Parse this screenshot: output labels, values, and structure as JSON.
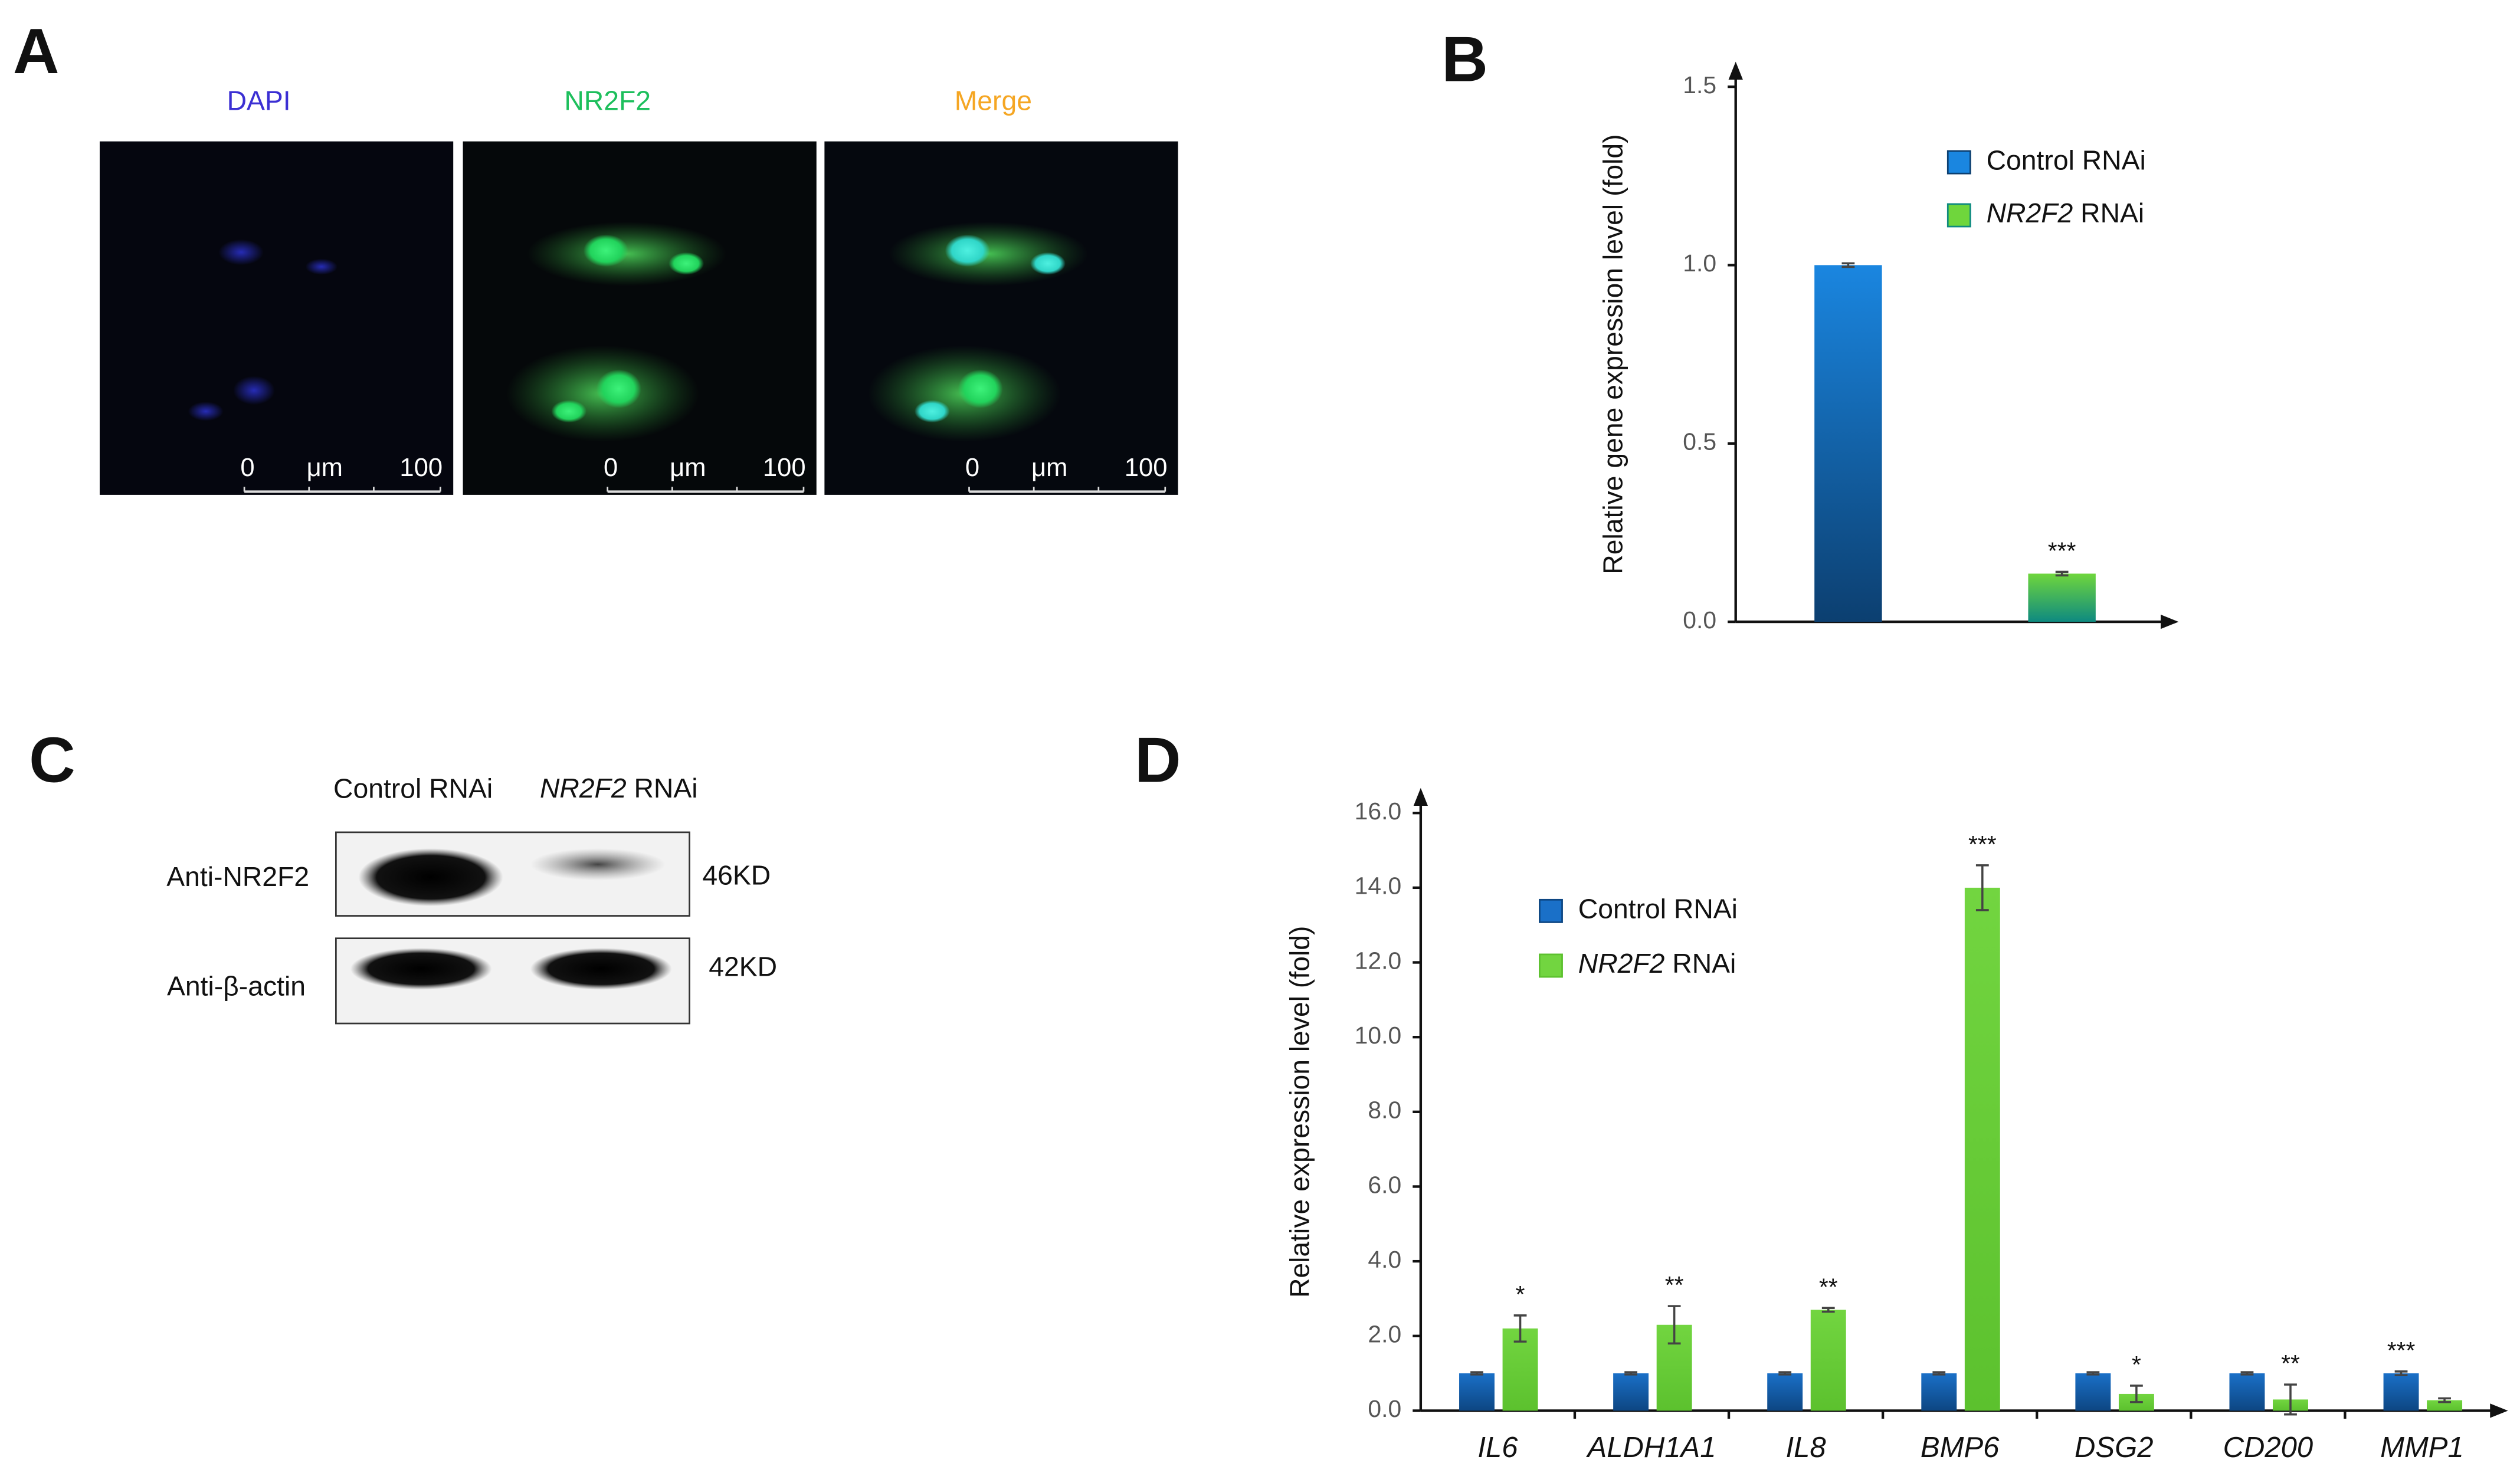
{
  "panels": {
    "A": {
      "label": "A",
      "channels": [
        "DAPI",
        "NR2F2",
        "Merge"
      ],
      "channel_colors": [
        "#3b2fd3",
        "#1dbf5c",
        "#f5a623"
      ],
      "scale_bar": [
        "0",
        "μm",
        "100"
      ]
    },
    "B": {
      "label": "B"
    },
    "C": {
      "label": "C",
      "lanes": [
        "Control RNAi",
        "NR2F2 RNAi"
      ],
      "rows": [
        {
          "antibody": "Anti-NR2F2",
          "size": "46KD"
        },
        {
          "antibody": "Anti-β-actin",
          "size": "42KD"
        }
      ]
    },
    "D": {
      "label": "D"
    }
  },
  "chart_data": [
    {
      "type": "bar",
      "ylabel": "Relative gene expression level (fold)",
      "categories": [
        null
      ],
      "ylim": [
        0,
        1.5
      ],
      "yticks": [
        {
          "value": 0,
          "label": "0.0"
        },
        {
          "value": 0.5,
          "label": "0.5"
        },
        {
          "value": 1.0,
          "label": "1.0"
        },
        {
          "value": 1.5,
          "label": "1.5"
        }
      ],
      "series": [
        {
          "name": "Control RNAi",
          "color": "#1a86e0",
          "gradient_end": "#0c3f70",
          "values": [
            1.0
          ],
          "errors": [
            0.005
          ],
          "annotations": [
            null
          ]
        },
        {
          "name": "NR2F2 RNAi",
          "color": "#6fd63c",
          "gradient_end": "#0e8a80",
          "values": [
            0.135
          ],
          "errors": [
            0.005
          ],
          "annotations": [
            "***"
          ]
        }
      ]
    },
    {
      "type": "bar",
      "ylabel": "Relative expression level (fold)",
      "categories": [
        "IL6",
        "ALDH1A1",
        "IL8",
        "BMP6",
        "DSG2",
        "CD200",
        "MMP1"
      ],
      "ylim": [
        0,
        16
      ],
      "yticks": [
        {
          "value": 0,
          "label": "0.0"
        },
        {
          "value": 2,
          "label": "2.0"
        },
        {
          "value": 4,
          "label": "4.0"
        },
        {
          "value": 6,
          "label": "6.0"
        },
        {
          "value": 8,
          "label": "8.0"
        },
        {
          "value": 10,
          "label": "10.0"
        },
        {
          "value": 12,
          "label": "12.0"
        },
        {
          "value": 14,
          "label": "14.0"
        },
        {
          "value": 16,
          "label": "16.0"
        }
      ],
      "series": [
        {
          "name": "Control RNAi",
          "color": "#1a70c8",
          "gradient_end": "#0d4682",
          "values": [
            1.0,
            1.0,
            1.0,
            1.0,
            1.0,
            1.0,
            1.0
          ],
          "errors": [
            0.03,
            0.03,
            0.03,
            0.03,
            0.03,
            0.03,
            0.05
          ],
          "annotations": [
            null,
            null,
            null,
            null,
            null,
            null,
            "***"
          ]
        },
        {
          "name": "NR2F2 RNAi",
          "color": "#72d540",
          "gradient_end": "#5cc12e",
          "values": [
            2.2,
            2.3,
            2.7,
            14.0,
            0.45,
            0.3,
            0.28
          ],
          "errors": [
            0.35,
            0.5,
            0.05,
            0.6,
            0.22,
            0.4,
            0.05
          ],
          "annotations": [
            "*",
            "**",
            "**",
            "***",
            "*",
            "**",
            null
          ]
        }
      ]
    }
  ]
}
